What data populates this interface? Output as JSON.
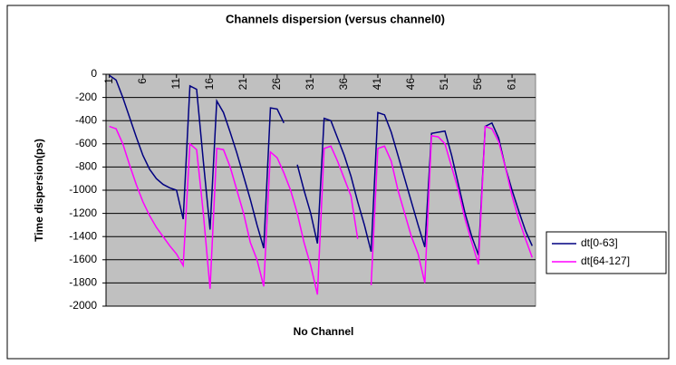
{
  "chart_data": {
    "type": "line",
    "title": "Channels dispersion (versus channel0)",
    "x_label": "No Channel",
    "y_label": "Time dispersion(ps)",
    "categories": [
      1,
      null,
      null,
      null,
      null,
      6,
      null,
      null,
      null,
      null,
      11,
      null,
      null,
      null,
      null,
      16,
      null,
      null,
      null,
      null,
      21,
      null,
      null,
      null,
      null,
      26,
      null,
      null,
      null,
      null,
      31,
      null,
      null,
      null,
      null,
      36,
      null,
      null,
      null,
      null,
      41,
      null,
      null,
      null,
      null,
      46,
      null,
      null,
      null,
      null,
      51,
      null,
      null,
      null,
      null,
      56,
      null,
      null,
      null,
      null,
      61,
      null,
      null,
      null
    ],
    "series": [
      {
        "name": "dt[0-63]",
        "color": "#000080",
        "values": [
          -10,
          -50,
          -200,
          -370,
          -540,
          -700,
          -820,
          -900,
          -950,
          -980,
          -1000,
          -1250,
          -100,
          -130,
          -750,
          -1340,
          -230,
          -330,
          -500,
          -680,
          -880,
          -1080,
          -1300,
          -1500,
          -290,
          -300,
          -420,
          null,
          -780,
          -1000,
          -1200,
          -1460,
          -380,
          -400,
          -550,
          -700,
          -880,
          -1100,
          -1300,
          -1530,
          -330,
          -350,
          -500,
          -700,
          -900,
          -1100,
          -1300,
          -1490,
          -510,
          -500,
          -490,
          -700,
          -950,
          -1200,
          -1400,
          -1560,
          -450,
          -420,
          -550,
          -800,
          -1000,
          -1180,
          -1350,
          -1480
        ]
      },
      {
        "name": "dt[64-127]",
        "color": "#ff00ff",
        "values": [
          -450,
          -470,
          -600,
          -780,
          -950,
          -1100,
          -1220,
          -1320,
          -1400,
          -1480,
          -1550,
          -1650,
          -600,
          -650,
          -1200,
          -1850,
          -640,
          -650,
          -800,
          -1000,
          -1200,
          -1450,
          -1600,
          -1830,
          -670,
          -720,
          -850,
          -1000,
          -1200,
          -1450,
          -1650,
          -1900,
          -640,
          -620,
          -750,
          -900,
          -1050,
          -1420,
          null,
          -1820,
          -640,
          -620,
          -750,
          -1000,
          -1200,
          -1400,
          -1550,
          -1800,
          -530,
          -540,
          -600,
          -800,
          -1000,
          -1250,
          -1450,
          -1640,
          -450,
          -470,
          -580,
          -800,
          -1050,
          -1250,
          -1420,
          -1580
        ]
      }
    ],
    "ylim": [
      -2000,
      0
    ],
    "yticks": [
      0,
      -200,
      -400,
      -600,
      -800,
      -1000,
      -1200,
      -1400,
      -1600,
      -1800,
      -2000
    ],
    "grid": true,
    "legend": "right"
  }
}
